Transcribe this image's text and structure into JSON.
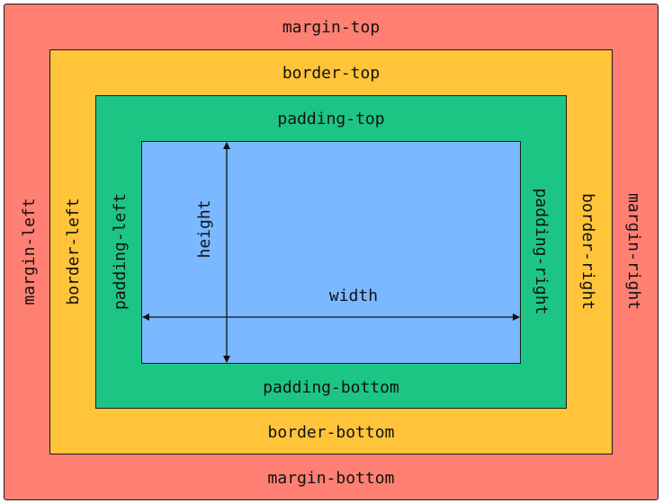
{
  "colors": {
    "margin": "#ff8073",
    "border": "#ffc43a",
    "padding": "#1dc585",
    "content": "#7ab8ff",
    "outline": "#1a1a1a"
  },
  "labels": {
    "margin_top": "margin-top",
    "margin_left": "margin-left",
    "margin_right": "margin-right",
    "margin_bottom": "margin-bottom",
    "border_top": "border-top",
    "border_left": "border-left",
    "border_right": "border-right",
    "border_bottom": "border-bottom",
    "padding_top": "padding-top",
    "padding_left": "padding-left",
    "padding_right": "padding-right",
    "padding_bottom": "padding-bottom",
    "height": "height",
    "width": "width"
  }
}
